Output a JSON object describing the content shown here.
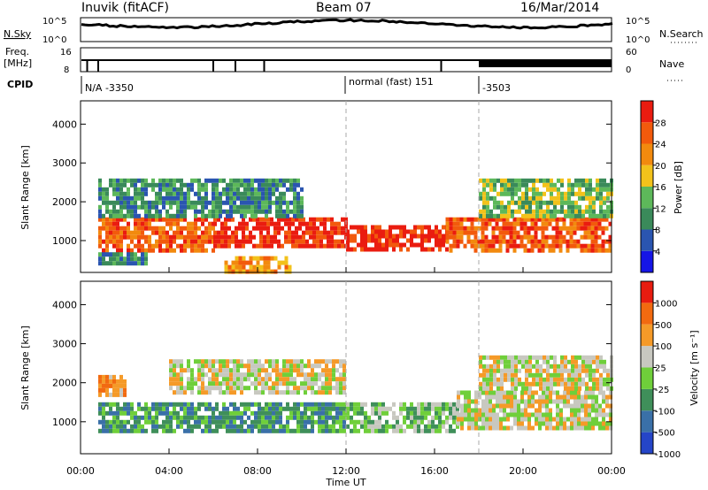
{
  "header": {
    "station": "Inuvik (fitACF)",
    "beam": "Beam 07",
    "date": "16/Mar/2014"
  },
  "strips": {
    "nsky_label": "N.Sky",
    "nsky_ticks": [
      "10^5",
      "10^0"
    ],
    "nsearch_label": "N.Search",
    "nsearch_ticks": [
      "10^5",
      "10^0"
    ],
    "freq_label": "Freq.",
    "freq_unit": "[MHz]",
    "freq_ticks": [
      "16",
      "8"
    ],
    "nave_label": "Nave",
    "nave_ticks": [
      "60",
      "0"
    ],
    "cpid_label": "CPID",
    "cpid_segments": [
      "N/A -3350",
      "normal (fast) 151",
      "-3503"
    ]
  },
  "chart_data": [
    {
      "type": "heatmap",
      "name": "power",
      "ylabel": "Slant Range [km]",
      "yticks": [
        "1000",
        "2000",
        "3000",
        "4000"
      ],
      "ylim": [
        180,
        4600
      ],
      "xlim": [
        0,
        24
      ],
      "colorbar_label": "Power [dB]",
      "colorbar_ticks": [
        "4",
        "8",
        "12",
        "16",
        "20",
        "24",
        "28"
      ],
      "colorbar_colors": [
        "#1515e6",
        "#2a55b0",
        "#3a8a5a",
        "#5db85a",
        "#f2c21b",
        "#f28a0e",
        "#f25a0c",
        "#ea1c10"
      ],
      "regions": [
        {
          "t0": 0.8,
          "t1": 6.0,
          "r0": 700,
          "r1": 1600,
          "level": 6
        },
        {
          "t0": 6.0,
          "t1": 12.0,
          "r0": 900,
          "r1": 1600,
          "level": 7
        },
        {
          "t0": 12.0,
          "t1": 16.5,
          "r0": 800,
          "r1": 1400,
          "level": 7
        },
        {
          "t0": 16.5,
          "t1": 24.0,
          "r0": 800,
          "r1": 1600,
          "level": 6
        },
        {
          "t0": 0.8,
          "t1": 10.0,
          "r0": 1600,
          "r1": 2600,
          "level": 2
        },
        {
          "t0": 18.0,
          "t1": 24.0,
          "r0": 1600,
          "r1": 2600,
          "level": 3
        },
        {
          "t0": 0.8,
          "t1": 3.0,
          "r0": 400,
          "r1": 700,
          "level": 2
        },
        {
          "t0": 6.5,
          "t1": 9.5,
          "r0": 250,
          "r1": 600,
          "level": 5
        }
      ]
    },
    {
      "type": "heatmap",
      "name": "velocity",
      "ylabel": "Slant Range [km]",
      "yticks": [
        "1000",
        "2000",
        "3000",
        "4000"
      ],
      "ylim": [
        180,
        4600
      ],
      "xlim": [
        0,
        24
      ],
      "xlabel": "Time UT",
      "xticks": [
        "00:00",
        "04:00",
        "08:00",
        "12:00",
        "16:00",
        "20:00",
        "00:00"
      ],
      "colorbar_label": "Velocity [m s⁻¹]",
      "colorbar_ticks": [
        "1000",
        "500",
        "100",
        "25",
        "-25",
        "-100",
        "-500",
        "-1000"
      ],
      "colorbar_colors": [
        "#2545c8",
        "#3a70a8",
        "#3f8f5a",
        "#6fcf3a",
        "#c8c8c0",
        "#f59a28",
        "#f26a10",
        "#e81c10"
      ],
      "regions": [
        {
          "t0": 0.8,
          "t1": 12.0,
          "r0": 800,
          "r1": 1500,
          "level": 2
        },
        {
          "t0": 12.0,
          "t1": 17.0,
          "r0": 800,
          "r1": 1500,
          "level": 3
        },
        {
          "t0": 17.0,
          "t1": 24.0,
          "r0": 800,
          "r1": 1800,
          "level": 4
        },
        {
          "t0": 4.0,
          "t1": 12.0,
          "r0": 1700,
          "r1": 2600,
          "level": 4
        },
        {
          "t0": 0.8,
          "t1": 2.0,
          "r0": 1700,
          "r1": 2200,
          "level": 5
        },
        {
          "t0": 18.0,
          "t1": 24.0,
          "r0": 1900,
          "r1": 2700,
          "level": 4
        }
      ]
    }
  ]
}
